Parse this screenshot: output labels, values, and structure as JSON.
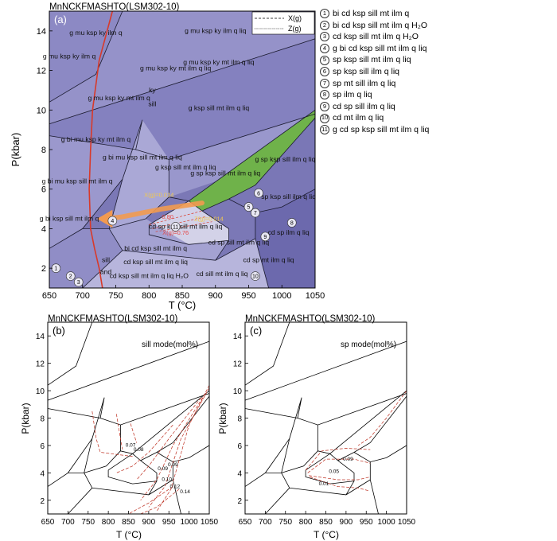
{
  "figure": {
    "panel_a_header": "MnNCKFMASHTO(LSM302-10)",
    "panel_b_header": "MnNCKFMASHTO(LSM302-10)",
    "panel_c_header": "MnNCKFMASHTO(LSM302-10)",
    "panel_a_letter": "(a)",
    "panel_b_letter": "(b)",
    "panel_c_letter": "(c)",
    "ylabel": "P(kbar)",
    "xlabel": "T (°C)",
    "series_x_label": "X(g)",
    "series_z_label": "Z(g)",
    "sill_mode_label": "sill mode(mol%)",
    "sp_mode_label": "sp mode(mol%)"
  },
  "legend_entries": [
    {
      "n": "1",
      "text": "bi cd ksp sill mt ilm q"
    },
    {
      "n": "2",
      "text": "bi cd ksp sill mt ilm q H₂O"
    },
    {
      "n": "3",
      "text": "cd ksp sill mt ilm q H₂O"
    },
    {
      "n": "4",
      "text": "g bi cd ksp sill mt ilm q liq"
    },
    {
      "n": "5",
      "text": "sp ksp sill mt ilm q liq"
    },
    {
      "n": "6",
      "text": "sp ksp sill ilm q liq"
    },
    {
      "n": "7",
      "text": "sp mt sill ilm q liq"
    },
    {
      "n": "8",
      "text": "sp ilm q liq"
    },
    {
      "n": "9",
      "text": "cd sp sill ilm q liq"
    },
    {
      "n": "10",
      "text": "cd mt ilm q liq"
    },
    {
      "n": "11",
      "text": "g cd sp ksp sill mt ilm q liq"
    }
  ],
  "field_labels": [
    {
      "text": "g mu ksp ky ilm q",
      "T": 720,
      "P": 13.8
    },
    {
      "text": "g mu ksp ky ilm q liq",
      "T": 900,
      "P": 13.9
    },
    {
      "text": "g mu ksp ky ilm q",
      "T": 680,
      "P": 12.6
    },
    {
      "text": "g mu ksp ky mt ilm q liq",
      "T": 840,
      "P": 12.0
    },
    {
      "text": "g mu ksp ky mt ilm q liq",
      "T": 905,
      "P": 12.3
    },
    {
      "text": "g mu ksp ky mt ilm q",
      "T": 755,
      "P": 10.5
    },
    {
      "text": "g ksp sill mt ilm q liq",
      "T": 905,
      "P": 10.0
    },
    {
      "text": "ky",
      "T": 805,
      "P": 10.9
    },
    {
      "text": "sill",
      "T": 805,
      "P": 10.2
    },
    {
      "text": "g bi mu ksp ky mt ilm q",
      "T": 720,
      "P": 8.4
    },
    {
      "text": "g bi mu ksp sill mt ilm q",
      "T": 692,
      "P": 6.3
    },
    {
      "text": "g bi mu ksp sill mt ilm q liq",
      "T": 790,
      "P": 7.5
    },
    {
      "text": "g ksp sill mt ilm q liq",
      "T": 855,
      "P": 7.0
    },
    {
      "text": "g sp ksp sill mt ilm q liq",
      "T": 915,
      "P": 6.7
    },
    {
      "text": "g sp ksp sill ilm q liq",
      "T": 1005,
      "P": 7.4
    },
    {
      "text": "sp ksp sill ilm q liq",
      "T": 1010,
      "P": 5.5
    },
    {
      "text": "g bi ksp sill mt ilm q",
      "T": 680,
      "P": 4.4
    },
    {
      "text": "cd sp ksp sill mt ilm q liq",
      "T": 855,
      "P": 4.0
    },
    {
      "text": "cd sp sill mt ilm q liq",
      "T": 935,
      "P": 3.2
    },
    {
      "text": "cd sp ilm q liq",
      "T": 1010,
      "P": 3.7
    },
    {
      "text": "cd sp mt ilm q liq",
      "T": 980,
      "P": 2.3
    },
    {
      "text": "cd sill mt ilm q liq",
      "T": 910,
      "P": 1.6
    },
    {
      "text": "bi cd ksp sill mt ilm q",
      "T": 810,
      "P": 2.9
    },
    {
      "text": "cd ksp sill mt ilm q liq",
      "T": 810,
      "P": 2.2
    },
    {
      "text": "cd ksp sill mt ilm q liq H₂O",
      "T": 800,
      "P": 1.5
    },
    {
      "text": "sill",
      "T": 735,
      "P": 2.3
    },
    {
      "text": "and",
      "T": 735,
      "P": 1.7
    }
  ],
  "point_labels": [
    {
      "text": "X(g)=0.014",
      "T": 815,
      "P": 5.6
    },
    {
      "text": "Z(g)=0.014",
      "T": 890,
      "P": 4.4
    },
    {
      "text": "X(g)=0.76",
      "T": 840,
      "P": 3.7
    },
    {
      "text": "0.80",
      "T": 828,
      "P": 4.5
    }
  ],
  "chart_data": [
    {
      "type": "area",
      "title": "MnNCKFMASHTO(LSM302-10)",
      "xlabel": "T (°C)",
      "ylabel": "P(kbar)",
      "xlim": [
        650,
        1050
      ],
      "ylim": [
        1,
        15
      ],
      "xticks": [
        650,
        700,
        750,
        800,
        850,
        900,
        950,
        1000,
        1050
      ],
      "yticks": [
        2,
        4,
        6,
        8,
        10,
        12,
        14
      ],
      "legend_position": "top-right",
      "series_names": [
        "X(g)",
        "Z(g)"
      ]
    },
    {
      "type": "line",
      "title": "MnNCKFMASHTO(LSM302-10)",
      "annotation": "sill mode(mol%)",
      "xlabel": "T (°C)",
      "ylabel": "P(kbar)",
      "xlim": [
        650,
        1050
      ],
      "ylim": [
        1,
        15
      ],
      "xticks": [
        650,
        700,
        750,
        800,
        850,
        900,
        950,
        1000,
        1050
      ],
      "yticks": [
        2,
        4,
        6,
        8,
        10,
        12,
        14
      ],
      "contour_labels": [
        "0.07",
        "0.08",
        "0.09",
        "0.10",
        "0.12",
        "0.14",
        "0.09"
      ]
    },
    {
      "type": "line",
      "title": "MnNCKFMASHTO(LSM302-10)",
      "annotation": "sp mode(mol%)",
      "xlabel": "T (°C)",
      "ylabel": "P(kbar)",
      "xlim": [
        650,
        1050
      ],
      "ylim": [
        1,
        15
      ],
      "xticks": [
        650,
        700,
        750,
        800,
        850,
        900,
        950,
        1000,
        1050
      ],
      "yticks": [
        2,
        4,
        6,
        8,
        10,
        12,
        14
      ],
      "contour_labels": [
        "0.09",
        "0.05",
        "0.01"
      ]
    }
  ]
}
